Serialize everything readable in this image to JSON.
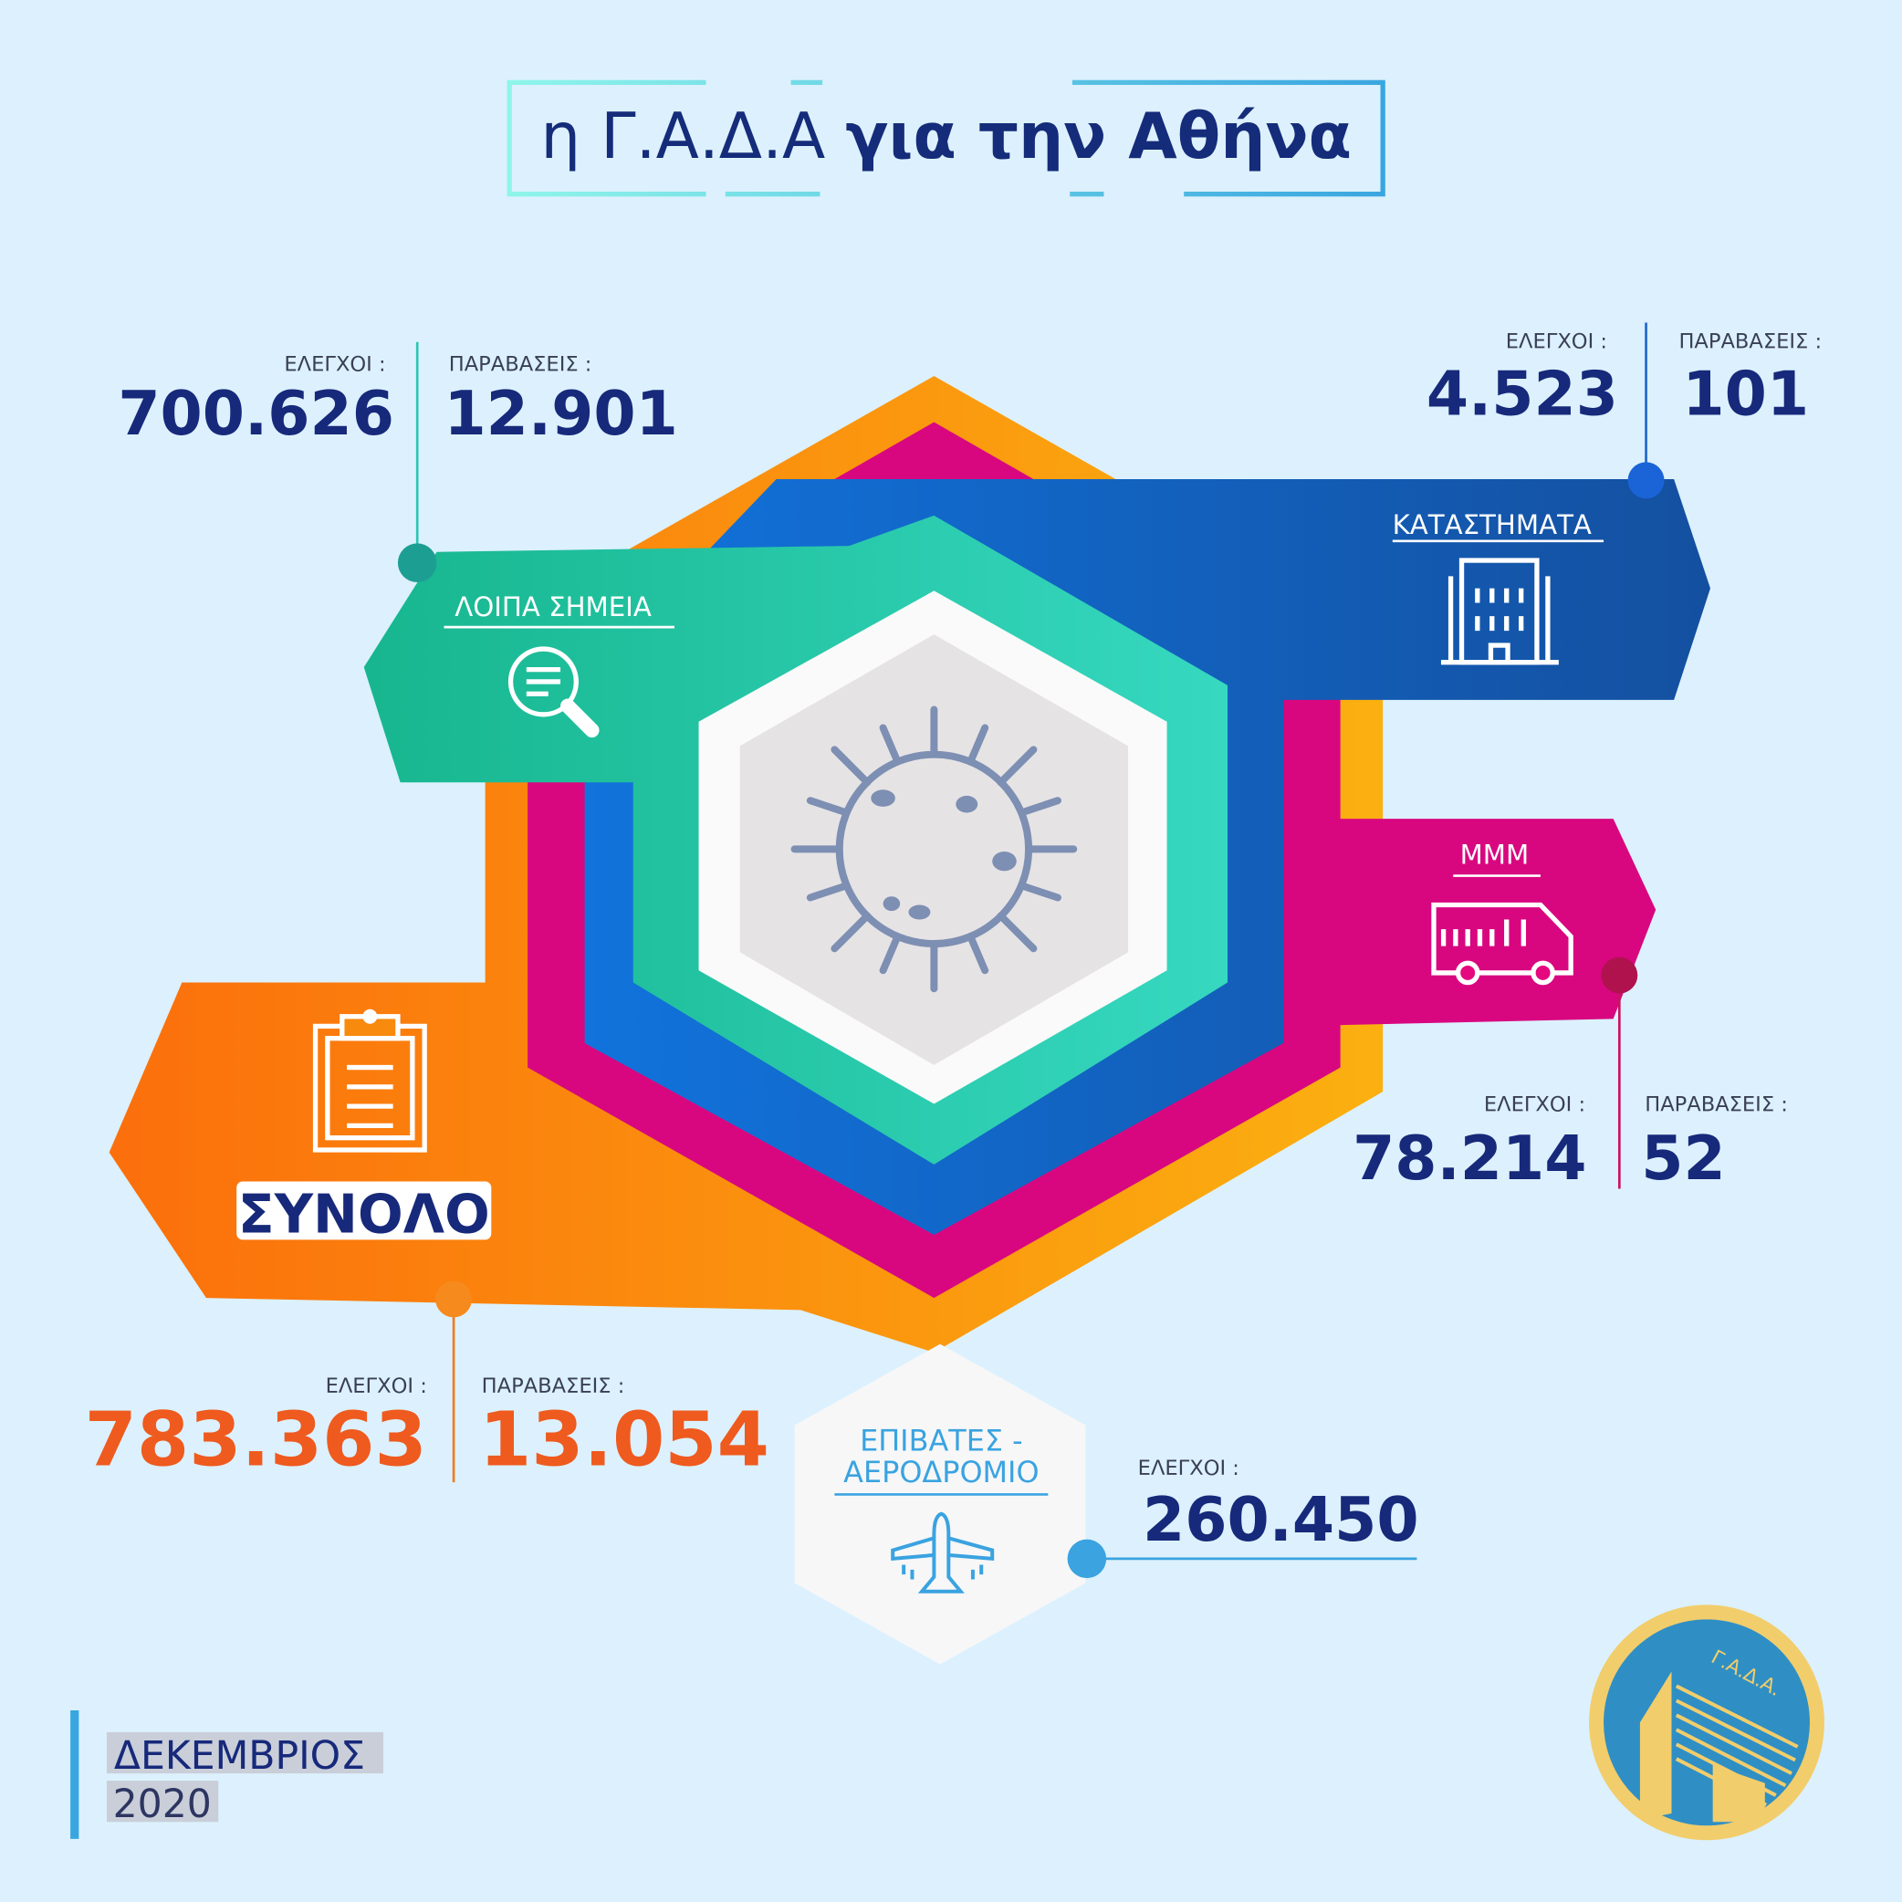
{
  "title": {
    "normal": "η Γ.Α.Δ.Α",
    "bold": "για την Αθήνα"
  },
  "labels": {
    "checks": "ΕΛΕΓΧΟΙ :",
    "violations": "ΠΑΡΑΒΑΣΕΙΣ :"
  },
  "other_points": {
    "label": "ΛΟΙΠΑ ΣΗΜΕΙΑ",
    "checks": "700.626",
    "violations": "12.901",
    "icon": "search-document-icon",
    "color": "#1fbf9c"
  },
  "stores": {
    "label": "ΚΑΤΑΣΤΗΜΑΤΑ",
    "checks": "4.523",
    "violations": "101",
    "icon": "building-icon",
    "color": "#1560c4"
  },
  "transport": {
    "label": "ΜΜΜ",
    "checks": "78.214",
    "violations": "52",
    "icon": "bus-icon",
    "color": "#e6087f"
  },
  "total": {
    "label": "ΣΥΝΟΛΟ",
    "checks": "783.363",
    "violations": "13.054",
    "icon": "clipboard-icon",
    "color": "#f7840f"
  },
  "airport": {
    "label_line1": "ΕΠΙΒΑΤΕΣ -",
    "label_line2": "ΑΕΡΟΔΡΟΜΙΟ",
    "checks": "260.450",
    "icon": "airplane-icon",
    "color": "#3aa3e0"
  },
  "center_icon": "virus-icon",
  "period": {
    "month": "ΔΕΚΕΜΒΡΙΟΣ",
    "year": "2020"
  },
  "logo": {
    "text": "Γ.Α.Δ.Α."
  }
}
